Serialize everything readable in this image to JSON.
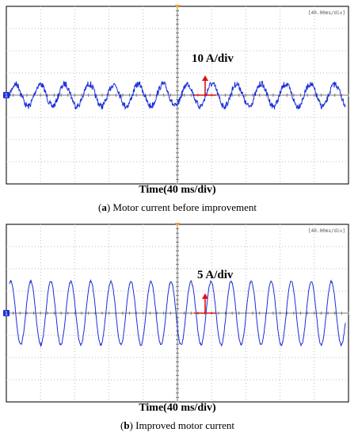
{
  "panels": [
    {
      "timebase": "[40.00ms/div]",
      "channel": "1",
      "scale_label": "10 A/div",
      "time_label": "Time(40 ms/div)",
      "caption": [
        "(",
        "a",
        ") Motor current before improvement"
      ]
    },
    {
      "timebase": "[40.00ms/div]",
      "channel": "1",
      "scale_label": "5 A/div",
      "time_label": "Time(40 ms/div)",
      "caption": [
        "(",
        "b",
        ") Improved motor current"
      ]
    }
  ]
}
